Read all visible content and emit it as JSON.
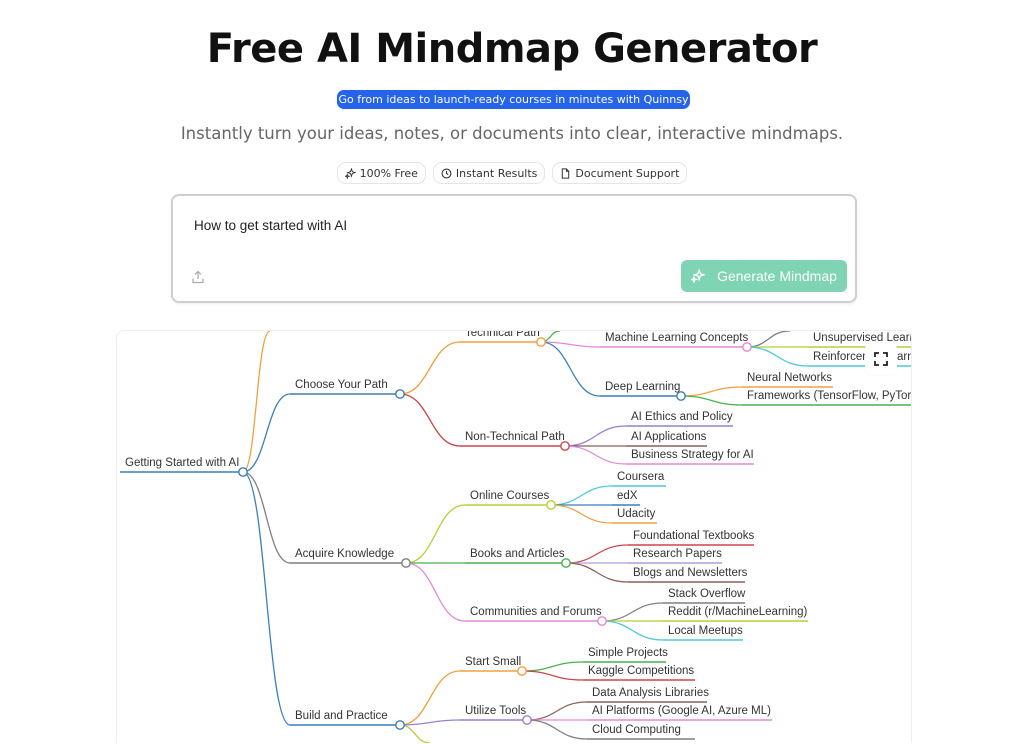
{
  "header": {
    "title": "Free AI Mindmap Generator",
    "promo_link": "Go from ideas to launch-ready courses in minutes with Quinnsy →",
    "subtitle": "Instantly turn your ideas, notes, or documents into clear, interactive mindmaps.",
    "badges": [
      {
        "label": "100% Free",
        "icon": "sparkles-icon"
      },
      {
        "label": "Instant Results",
        "icon": "clock-icon"
      },
      {
        "label": "Document Support",
        "icon": "document-icon"
      }
    ]
  },
  "input": {
    "value": "How to get started with AI",
    "upload_icon": "upload-icon",
    "generate_label": "Generate Mindmap",
    "generate_color": "#7fd4b3"
  },
  "mindmap": {
    "fullscreen_icon": "fullscreen-icon",
    "root": "Getting Started with AI",
    "nodes": {
      "cyp": "Choose Your Path",
      "tp": "Technical Path",
      "mlc": "Machine Learning Concepts",
      "ul": "Unsupervised Learni",
      "rl": "Reinforcem",
      "rl2": "arn",
      "dl": "Deep Learning",
      "nn": "Neural Networks",
      "fw": "Frameworks (TensorFlow, PyTorch",
      "ntp": "Non-Technical Path",
      "eth": "AI Ethics and Policy",
      "app": "AI Applications",
      "bs": "Business Strategy for AI",
      "ak": "Acquire Knowledge",
      "oc": "Online Courses",
      "cou": "Coursera",
      "edx": "edX",
      "uda": "Udacity",
      "ba": "Books and Articles",
      "ft": "Foundational Textbooks",
      "rp": "Research Papers",
      "bn": "Blogs and Newsletters",
      "cf": "Communities and Forums",
      "so": "Stack Overflow",
      "rd": "Reddit (r/MachineLearning)",
      "lm": "Local Meetups",
      "bp": "Build and Practice",
      "ss": "Start Small",
      "sp": "Simple Projects",
      "kc": "Kaggle Competitions",
      "ut": "Utilize Tools",
      "dal": "Data Analysis Libraries",
      "aip": "AI Platforms (Google AI, Azure ML)",
      "cc": "Cloud Computing"
    },
    "colors": {
      "blue": "#3a7fb8",
      "orange": "#f0a040",
      "red": "#c9464f",
      "gray": "#7f7f7f",
      "lime": "#b5cf3a",
      "green": "#4caf50",
      "pink": "#e08ad6",
      "purple": "#9a7fd0",
      "cyan": "#4fc9d6",
      "brown": "#8c5f5a",
      "lilac": "#b0a0d8"
    }
  }
}
